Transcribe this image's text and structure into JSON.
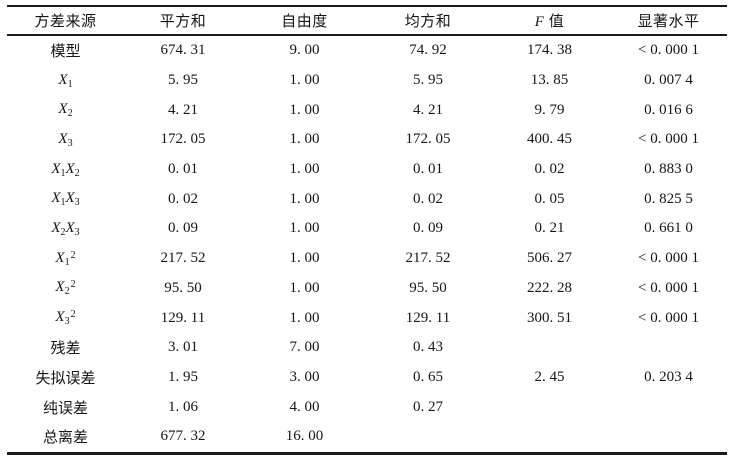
{
  "colors": {
    "background": "#ffffff",
    "text": "#161616",
    "rule": "#1a1a1a"
  },
  "table": {
    "columns": [
      {
        "parts": [
          {
            "t": "方差来源"
          }
        ]
      },
      {
        "parts": [
          {
            "t": "平方和"
          }
        ]
      },
      {
        "parts": [
          {
            "t": "自由度"
          }
        ]
      },
      {
        "parts": [
          {
            "t": "均方和"
          }
        ]
      },
      {
        "parts": [
          {
            "t": "F",
            "style": "italic"
          },
          {
            "t": " 值"
          }
        ]
      },
      {
        "parts": [
          {
            "t": "显著水平"
          }
        ]
      }
    ],
    "rows": [
      {
        "label": [
          {
            "t": "模型"
          }
        ],
        "values": [
          "674. 31",
          "9. 00",
          "74. 92",
          "174. 38",
          "< 0. 000 1"
        ]
      },
      {
        "label": [
          {
            "t": "X",
            "style": "italic"
          },
          {
            "t": "1",
            "style": "sub"
          }
        ],
        "values": [
          "5. 95",
          "1. 00",
          "5. 95",
          "13. 85",
          "0. 007 4"
        ]
      },
      {
        "label": [
          {
            "t": "X",
            "style": "italic"
          },
          {
            "t": "2",
            "style": "sub"
          }
        ],
        "values": [
          "4. 21",
          "1. 00",
          "4. 21",
          "9. 79",
          "0. 016 6"
        ]
      },
      {
        "label": [
          {
            "t": "X",
            "style": "italic"
          },
          {
            "t": "3",
            "style": "sub"
          }
        ],
        "values": [
          "172. 05",
          "1. 00",
          "172. 05",
          "400. 45",
          "< 0. 000 1"
        ]
      },
      {
        "label": [
          {
            "t": "X",
            "style": "italic"
          },
          {
            "t": "1",
            "style": "sub"
          },
          {
            "t": "X",
            "style": "italic"
          },
          {
            "t": "2",
            "style": "sub"
          }
        ],
        "values": [
          "0. 01",
          "1. 00",
          "0. 01",
          "0. 02",
          "0. 883 0"
        ]
      },
      {
        "label": [
          {
            "t": "X",
            "style": "italic"
          },
          {
            "t": "1",
            "style": "sub"
          },
          {
            "t": "X",
            "style": "italic"
          },
          {
            "t": "3",
            "style": "sub"
          }
        ],
        "values": [
          "0. 02",
          "1. 00",
          "0. 02",
          "0. 05",
          "0. 825 5"
        ]
      },
      {
        "label": [
          {
            "t": "X",
            "style": "italic"
          },
          {
            "t": "2",
            "style": "sub"
          },
          {
            "t": "X",
            "style": "italic"
          },
          {
            "t": "3",
            "style": "sub"
          }
        ],
        "values": [
          "0. 09",
          "1. 00",
          "0. 09",
          "0. 21",
          "0. 661 0"
        ]
      },
      {
        "label": [
          {
            "t": "X",
            "style": "italic"
          },
          {
            "t": "1",
            "style": "sub"
          },
          {
            "t": "2",
            "style": "sup"
          }
        ],
        "values": [
          "217. 52",
          "1. 00",
          "217. 52",
          "506. 27",
          "< 0. 000 1"
        ]
      },
      {
        "label": [
          {
            "t": "X",
            "style": "italic"
          },
          {
            "t": "2",
            "style": "sub"
          },
          {
            "t": "2",
            "style": "sup"
          }
        ],
        "values": [
          "95. 50",
          "1. 00",
          "95. 50",
          "222. 28",
          "< 0. 000 1"
        ]
      },
      {
        "label": [
          {
            "t": "X",
            "style": "italic"
          },
          {
            "t": "3",
            "style": "sub"
          },
          {
            "t": "2",
            "style": "sup"
          }
        ],
        "values": [
          "129. 11",
          "1. 00",
          "129. 11",
          "300. 51",
          "< 0. 000 1"
        ]
      },
      {
        "label": [
          {
            "t": "残差"
          }
        ],
        "values": [
          "3. 01",
          "7. 00",
          "0. 43",
          "",
          ""
        ]
      },
      {
        "label": [
          {
            "t": "失拟误差"
          }
        ],
        "values": [
          "1. 95",
          "3. 00",
          "0. 65",
          "2. 45",
          "0. 203 4"
        ]
      },
      {
        "label": [
          {
            "t": "纯误差"
          }
        ],
        "values": [
          "1. 06",
          "4. 00",
          "0. 27",
          "",
          ""
        ]
      },
      {
        "label": [
          {
            "t": "总离差"
          }
        ],
        "values": [
          "677. 32",
          "16. 00",
          "",
          "",
          ""
        ]
      }
    ]
  }
}
